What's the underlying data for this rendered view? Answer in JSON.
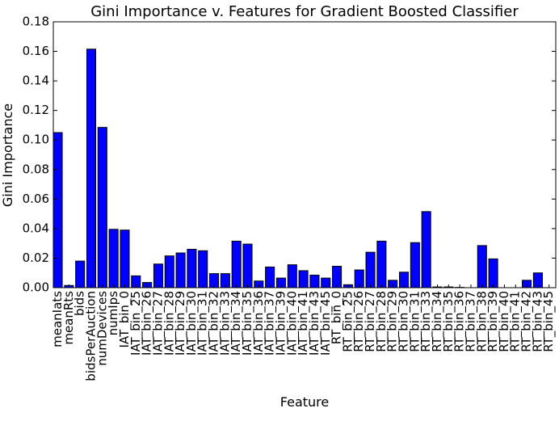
{
  "chart_data": {
    "type": "bar",
    "title": "Gini Importance v. Features for Gradient Boosted Classifier",
    "xlabel": "Feature",
    "ylabel": "Gini Importance",
    "ylim": [
      0,
      0.18
    ],
    "yticks": [
      "0.00",
      "0.02",
      "0.04",
      "0.06",
      "0.08",
      "0.10",
      "0.12",
      "0.14",
      "0.16",
      "0.18"
    ],
    "categories": [
      "meanIats",
      "meanRts",
      "bids",
      "bidsPerAuction",
      "numDevices",
      "numIps",
      "IAT_bin_0",
      "IAT_bin_25",
      "IAT_bin_26",
      "IAT_bin_27",
      "IAT_bin_28",
      "IAT_bin_29",
      "IAT_bin_30",
      "IAT_bin_31",
      "IAT_bin_32",
      "IAT_bin_33",
      "IAT_bin_34",
      "IAT_bin_35",
      "IAT_bin_36",
      "IAT_bin_37",
      "IAT_bin_39",
      "IAT_bin_40",
      "IAT_bin_41",
      "IAT_bin_43",
      "IAT_bin_45",
      "RT_bin_0",
      "RT_bin_25",
      "RT_bin_26",
      "RT_bin_27",
      "RT_bin_28",
      "RT_bin_29",
      "RT_bin_30",
      "RT_bin_31",
      "RT_bin_33",
      "RT_bin_34",
      "RT_bin_35",
      "RT_bin_36",
      "RT_bin_37",
      "RT_bin_38",
      "RT_bin_39",
      "RT_bin_40",
      "RT_bin_41",
      "RT_bin_42",
      "RT_bin_43",
      "RT_bin_45"
    ],
    "values": [
      0.105,
      0.0015,
      0.018,
      0.1615,
      0.1085,
      0.0395,
      0.039,
      0.008,
      0.0035,
      0.016,
      0.0215,
      0.0235,
      0.026,
      0.025,
      0.0095,
      0.0095,
      0.0315,
      0.0295,
      0.0045,
      0.014,
      0.0065,
      0.0155,
      0.0115,
      0.0085,
      0.0065,
      0.0145,
      0.002,
      0.012,
      0.024,
      0.0315,
      0.005,
      0.0105,
      0.0305,
      0.0515,
      0.0005,
      0.0005,
      0.0002,
      0.0,
      0.0285,
      0.0195,
      0.0,
      0.0,
      0.005,
      0.01,
      0.0
    ],
    "bar_color": "#0000ff",
    "grid": false
  }
}
